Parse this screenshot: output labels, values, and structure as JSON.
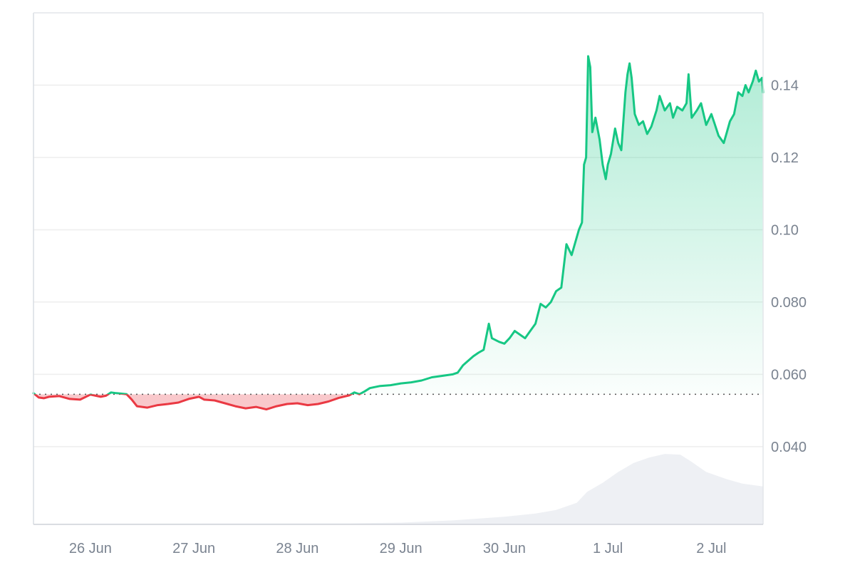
{
  "chart_data": {
    "type": "area",
    "title": "",
    "xlabel": "",
    "ylabel": "",
    "x_ticks": [
      "26 Jun",
      "27 Jun",
      "28 Jun",
      "29 Jun",
      "30 Jun",
      "1 Jul",
      "2 Jul"
    ],
    "y_ticks": [
      {
        "value": 0.04,
        "label": "0.040"
      },
      {
        "value": 0.06,
        "label": "0.060"
      },
      {
        "value": 0.08,
        "label": "0.080"
      },
      {
        "value": 0.1,
        "label": "0.10"
      },
      {
        "value": 0.12,
        "label": "0.12"
      },
      {
        "value": 0.14,
        "label": "0.14"
      }
    ],
    "x_range_days": [
      25.45,
      32.5
    ],
    "y_range": [
      0.0185,
      0.16
    ],
    "grid": "horizontal",
    "y_axis_position": "right",
    "baseline": {
      "value": 0.0545,
      "style": "dotted"
    },
    "colors": {
      "up": "#16c784",
      "down": "#ea3943",
      "up_fill": "#16c784",
      "down_fill": "#ea3943",
      "volume": "#eef0f4",
      "grid": "#eeeeee",
      "axis_text": "#7a8390"
    },
    "series": [
      {
        "values": [
          [
            25.45,
            0.0548
          ],
          [
            25.5,
            0.0536
          ],
          [
            25.55,
            0.0534
          ],
          [
            25.6,
            0.0538
          ],
          [
            25.7,
            0.054
          ],
          [
            25.8,
            0.0532
          ],
          [
            25.9,
            0.053
          ],
          [
            26.0,
            0.0544
          ],
          [
            26.1,
            0.0538
          ],
          [
            26.15,
            0.0541
          ],
          [
            26.2,
            0.055
          ],
          [
            26.25,
            0.0548
          ],
          [
            26.35,
            0.0545
          ],
          [
            26.4,
            0.053
          ],
          [
            26.45,
            0.0512
          ],
          [
            26.55,
            0.0508
          ],
          [
            26.65,
            0.0515
          ],
          [
            26.75,
            0.0518
          ],
          [
            26.85,
            0.0522
          ],
          [
            26.95,
            0.0532
          ],
          [
            27.05,
            0.0538
          ],
          [
            27.1,
            0.053
          ],
          [
            27.2,
            0.0528
          ],
          [
            27.3,
            0.052
          ],
          [
            27.4,
            0.0512
          ],
          [
            27.5,
            0.0506
          ],
          [
            27.6,
            0.051
          ],
          [
            27.7,
            0.0503
          ],
          [
            27.8,
            0.0512
          ],
          [
            27.9,
            0.0518
          ],
          [
            28.0,
            0.052
          ],
          [
            28.1,
            0.0515
          ],
          [
            28.2,
            0.0518
          ],
          [
            28.3,
            0.0525
          ],
          [
            28.4,
            0.0535
          ],
          [
            28.5,
            0.0542
          ],
          [
            28.55,
            0.055
          ],
          [
            28.6,
            0.0545
          ],
          [
            28.65,
            0.0553
          ],
          [
            28.7,
            0.0562
          ],
          [
            28.8,
            0.0568
          ],
          [
            28.9,
            0.057
          ],
          [
            29.0,
            0.0575
          ],
          [
            29.1,
            0.0578
          ],
          [
            29.2,
            0.0583
          ],
          [
            29.3,
            0.0592
          ],
          [
            29.4,
            0.0596
          ],
          [
            29.5,
            0.06
          ],
          [
            29.55,
            0.0605
          ],
          [
            29.6,
            0.0625
          ],
          [
            29.7,
            0.065
          ],
          [
            29.75,
            0.066
          ],
          [
            29.8,
            0.0668
          ],
          [
            29.85,
            0.074
          ],
          [
            29.88,
            0.07
          ],
          [
            29.95,
            0.069
          ],
          [
            30.0,
            0.0685
          ],
          [
            30.05,
            0.07
          ],
          [
            30.1,
            0.072
          ],
          [
            30.15,
            0.071
          ],
          [
            30.2,
            0.07
          ],
          [
            30.25,
            0.072
          ],
          [
            30.3,
            0.074
          ],
          [
            30.35,
            0.0795
          ],
          [
            30.4,
            0.0785
          ],
          [
            30.45,
            0.08
          ],
          [
            30.5,
            0.083
          ],
          [
            30.55,
            0.084
          ],
          [
            30.6,
            0.096
          ],
          [
            30.65,
            0.093
          ],
          [
            30.7,
            0.098
          ],
          [
            30.72,
            0.1
          ],
          [
            30.75,
            0.102
          ],
          [
            30.77,
            0.118
          ],
          [
            30.79,
            0.12
          ],
          [
            30.81,
            0.148
          ],
          [
            30.83,
            0.145
          ],
          [
            30.85,
            0.127
          ],
          [
            30.88,
            0.131
          ],
          [
            30.92,
            0.125
          ],
          [
            30.95,
            0.118
          ],
          [
            30.98,
            0.114
          ],
          [
            31.0,
            0.118
          ],
          [
            31.03,
            0.121
          ],
          [
            31.07,
            0.128
          ],
          [
            31.1,
            0.124
          ],
          [
            31.13,
            0.122
          ],
          [
            31.17,
            0.138
          ],
          [
            31.19,
            0.143
          ],
          [
            31.21,
            0.146
          ],
          [
            31.23,
            0.142
          ],
          [
            31.26,
            0.132
          ],
          [
            31.3,
            0.129
          ],
          [
            31.34,
            0.13
          ],
          [
            31.38,
            0.1265
          ],
          [
            31.42,
            0.1285
          ],
          [
            31.47,
            0.133
          ],
          [
            31.5,
            0.137
          ],
          [
            31.55,
            0.133
          ],
          [
            31.6,
            0.135
          ],
          [
            31.63,
            0.131
          ],
          [
            31.67,
            0.134
          ],
          [
            31.72,
            0.133
          ],
          [
            31.76,
            0.135
          ],
          [
            31.78,
            0.143
          ],
          [
            31.81,
            0.131
          ],
          [
            31.86,
            0.133
          ],
          [
            31.9,
            0.135
          ],
          [
            31.95,
            0.129
          ],
          [
            32.0,
            0.132
          ],
          [
            32.03,
            0.1295
          ],
          [
            32.07,
            0.126
          ],
          [
            32.12,
            0.124
          ],
          [
            32.15,
            0.127
          ],
          [
            32.18,
            0.13
          ],
          [
            32.22,
            0.132
          ],
          [
            32.26,
            0.138
          ],
          [
            32.3,
            0.137
          ],
          [
            32.33,
            0.14
          ],
          [
            32.36,
            0.138
          ],
          [
            32.4,
            0.141
          ],
          [
            32.43,
            0.144
          ],
          [
            32.46,
            0.141
          ],
          [
            32.49,
            0.142
          ],
          [
            32.5,
            0.138
          ]
        ]
      }
    ],
    "volume": [
      [
        25.45,
        0.0187
      ],
      [
        28.5,
        0.0188
      ],
      [
        29.0,
        0.019
      ],
      [
        29.5,
        0.0196
      ],
      [
        30.0,
        0.0206
      ],
      [
        30.3,
        0.0215
      ],
      [
        30.5,
        0.0225
      ],
      [
        30.7,
        0.0245
      ],
      [
        30.8,
        0.0275
      ],
      [
        30.95,
        0.03
      ],
      [
        31.1,
        0.033
      ],
      [
        31.25,
        0.0355
      ],
      [
        31.4,
        0.037
      ],
      [
        31.55,
        0.038
      ],
      [
        31.7,
        0.0378
      ],
      [
        31.8,
        0.036
      ],
      [
        31.95,
        0.033
      ],
      [
        32.15,
        0.031
      ],
      [
        32.3,
        0.0298
      ],
      [
        32.5,
        0.029
      ]
    ]
  }
}
